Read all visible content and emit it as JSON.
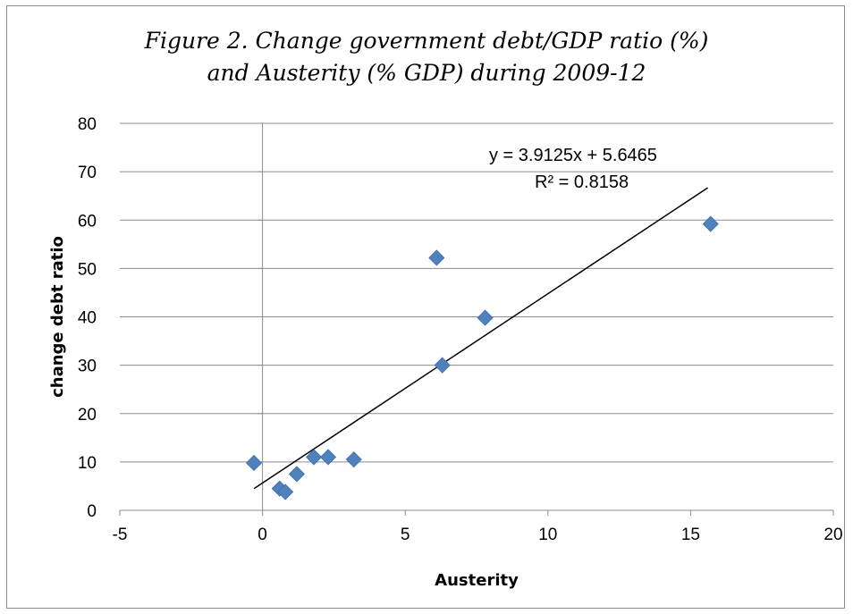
{
  "chart_data": {
    "type": "scatter",
    "title_line1": "Figure 2. Change government debt/GDP ratio (%)",
    "title_line2": "and Austerity (% GDP)  during 2009-12",
    "xlabel": "Austerity",
    "ylabel": "change debt ratio",
    "xlim": [
      -5,
      20
    ],
    "ylim": [
      0,
      80
    ],
    "xticks": [
      -5,
      0,
      5,
      10,
      15,
      20
    ],
    "yticks": [
      0,
      10,
      20,
      30,
      40,
      50,
      60,
      70,
      80
    ],
    "grid": "horizontal",
    "marker": "diamond",
    "marker_color": "#4f81bd",
    "points": [
      {
        "x": -0.3,
        "y": 9.8
      },
      {
        "x": 0.6,
        "y": 4.5
      },
      {
        "x": 0.8,
        "y": 3.8
      },
      {
        "x": 1.2,
        "y": 7.5
      },
      {
        "x": 1.8,
        "y": 11.0
      },
      {
        "x": 2.3,
        "y": 11.0
      },
      {
        "x": 3.2,
        "y": 10.5
      },
      {
        "x": 6.1,
        "y": 52.2
      },
      {
        "x": 6.3,
        "y": 30.0
      },
      {
        "x": 7.8,
        "y": 39.8
      },
      {
        "x": 15.7,
        "y": 59.2
      }
    ],
    "trendline": {
      "slope": 3.9125,
      "intercept": 5.6465,
      "x_range": [
        -0.3,
        15.6
      ],
      "equation": "y = 3.9125x + 5.6465",
      "r_squared": "R² = 0.8158"
    }
  }
}
